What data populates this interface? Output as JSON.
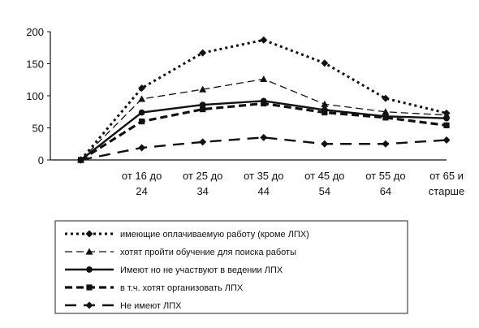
{
  "chart_data": {
    "type": "line",
    "categories": [
      "",
      "от 16 до 24",
      "от 25 до 34",
      "от 35 до 44",
      "от 45 до 54",
      "от 55 до 64",
      "от 65 и старше"
    ],
    "category_lines": [
      [
        "",
        ""
      ],
      [
        "от 16 до",
        "24"
      ],
      [
        "от 25 до",
        "34"
      ],
      [
        "от 35 до",
        "44"
      ],
      [
        "от 45 до",
        "54"
      ],
      [
        "от 55 до",
        "64"
      ],
      [
        "от 65 и",
        "старше"
      ]
    ],
    "ylim": [
      0,
      200
    ],
    "yticks": [
      0,
      50,
      100,
      150,
      200
    ],
    "grid": false,
    "legend_position": "bottom",
    "series": [
      {
        "name": "имеющие оплачиваемую работу (кроме ЛПХ)",
        "values": [
          0,
          112,
          167,
          187,
          151,
          96,
          73
        ],
        "marker": "diamond",
        "dash": "3,4",
        "width": 3
      },
      {
        "name": "хотят пройти обучение для поиска работы",
        "values": [
          0,
          95,
          110,
          126,
          87,
          75,
          70
        ],
        "marker": "triangle",
        "dash": "9,5",
        "width": 1.3
      },
      {
        "name": "Имеют но не участвуют в ведении ЛПХ",
        "values": [
          0,
          74,
          86,
          92,
          78,
          68,
          65
        ],
        "marker": "circle",
        "dash": "",
        "width": 2.4
      },
      {
        "name": "в т.ч. хотят организовать ЛПХ",
        "values": [
          0,
          60,
          79,
          88,
          74,
          66,
          54
        ],
        "marker": "square",
        "dash": "9,5",
        "width": 3.2
      },
      {
        "name": "Не имеют ЛПХ",
        "values": [
          0,
          19,
          28,
          35,
          25,
          25,
          31
        ],
        "marker": "diamond",
        "dash": "14,9",
        "width": 2.4
      }
    ]
  }
}
